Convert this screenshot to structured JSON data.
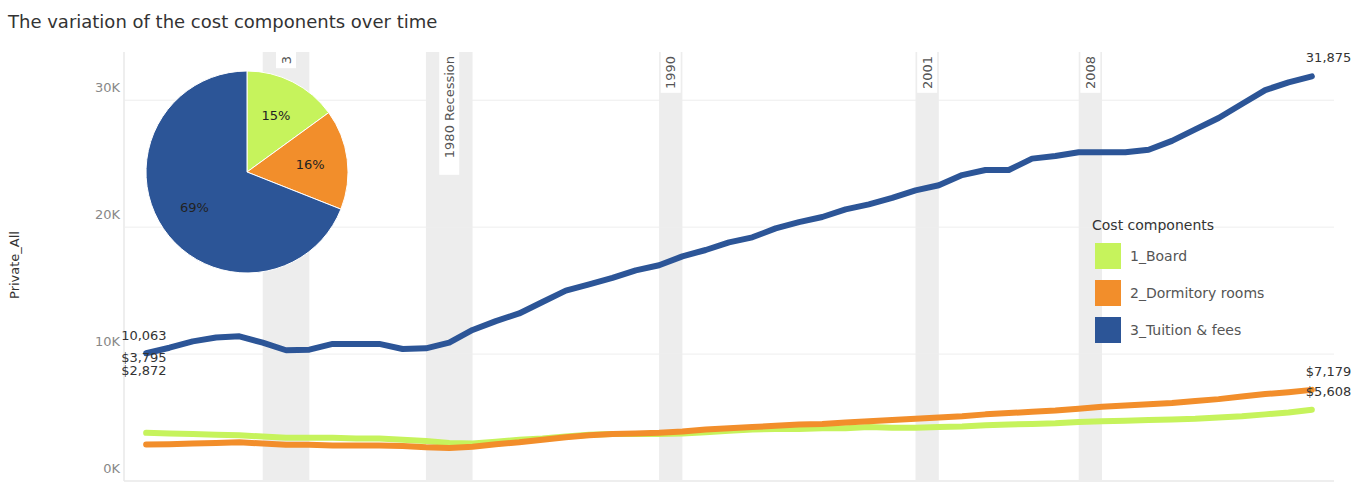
{
  "chart_data": [
    {
      "type": "line",
      "title": "The variation of the cost components over time",
      "y_label": "Private_All",
      "categories": [
        null,
        null,
        null,
        null,
        null,
        null,
        null,
        null,
        null,
        null,
        null,
        null,
        null,
        null,
        null,
        null,
        null,
        null,
        null,
        null,
        null,
        null,
        null,
        null,
        null,
        null,
        null,
        null,
        null,
        null,
        null,
        null,
        null,
        null,
        null,
        null,
        null,
        null,
        null,
        null,
        null,
        null,
        null,
        null,
        null,
        null,
        null,
        null,
        null,
        null,
        null
      ],
      "ylim": [
        0,
        33800
      ],
      "yticks": [
        {
          "value": 0,
          "label": "0K"
        },
        {
          "value": 10000,
          "label": "10K"
        },
        {
          "value": 20000,
          "label": "20K"
        },
        {
          "value": 30000,
          "label": "30K"
        }
      ],
      "grid": true,
      "tick_labels": "y",
      "legend": "right",
      "legend_title": "Cost components",
      "data_labels": true,
      "annotations": [
        {
          "label": "3",
          "start": 5,
          "end": 7
        },
        {
          "label": "1980 Recession",
          "start": 12,
          "end": 14
        },
        {
          "label": "1990",
          "start": 22,
          "end": 23
        },
        {
          "label": "2001",
          "start": 33,
          "end": 34
        },
        {
          "label": "2008",
          "start": 40,
          "end": 41
        }
      ],
      "series": [
        {
          "name": "1_Board",
          "color": "#c6f35c",
          "values": [
            3795,
            3750,
            3700,
            3650,
            3600,
            3500,
            3400,
            3400,
            3400,
            3350,
            3350,
            3250,
            3150,
            3000,
            2950,
            3100,
            3250,
            3350,
            3500,
            3650,
            3700,
            3700,
            3700,
            3750,
            3850,
            3950,
            4050,
            4100,
            4100,
            4150,
            4150,
            4250,
            4200,
            4200,
            4250,
            4300,
            4400,
            4450,
            4500,
            4550,
            4650,
            4700,
            4750,
            4800,
            4850,
            4900,
            5000,
            5100,
            5250,
            5400,
            5608
          ],
          "value_labels": [
            "$3,795",
            null,
            null,
            null,
            null,
            null,
            null,
            null,
            null,
            null,
            null,
            null,
            null,
            null,
            null,
            null,
            null,
            null,
            null,
            null,
            null,
            null,
            null,
            null,
            null,
            null,
            null,
            null,
            null,
            null,
            null,
            null,
            null,
            null,
            null,
            null,
            null,
            null,
            null,
            null,
            null,
            null,
            null,
            null,
            null,
            null,
            null,
            null,
            null,
            null,
            "$5,608"
          ]
        },
        {
          "name": "2_Dormitory rooms",
          "color": "#f28e2b",
          "values": [
            2872,
            2900,
            2950,
            3000,
            3050,
            2950,
            2850,
            2850,
            2800,
            2800,
            2800,
            2750,
            2650,
            2600,
            2700,
            2900,
            3050,
            3250,
            3450,
            3600,
            3700,
            3750,
            3800,
            3900,
            4050,
            4150,
            4250,
            4350,
            4450,
            4500,
            4600,
            4700,
            4800,
            4900,
            5000,
            5100,
            5250,
            5350,
            5450,
            5550,
            5700,
            5850,
            5950,
            6050,
            6150,
            6300,
            6450,
            6650,
            6850,
            7000,
            7179
          ],
          "value_labels": [
            "$2,872",
            null,
            null,
            null,
            null,
            null,
            null,
            null,
            null,
            null,
            null,
            null,
            null,
            null,
            null,
            null,
            null,
            null,
            null,
            null,
            null,
            null,
            null,
            null,
            null,
            null,
            null,
            null,
            null,
            null,
            null,
            null,
            null,
            null,
            null,
            null,
            null,
            null,
            null,
            null,
            null,
            null,
            null,
            null,
            null,
            null,
            null,
            null,
            null,
            null,
            "$7,179"
          ]
        },
        {
          "name": "3_Tuition & fees",
          "color": "#2c5597",
          "values": [
            10063,
            10500,
            11000,
            11300,
            11400,
            10900,
            10300,
            10350,
            10800,
            10800,
            10800,
            10400,
            10450,
            10900,
            11900,
            12600,
            13200,
            14100,
            15000,
            15500,
            16000,
            16600,
            17000,
            17700,
            18200,
            18800,
            19200,
            19900,
            20400,
            20800,
            21400,
            21800,
            22300,
            22900,
            23300,
            24100,
            24500,
            24500,
            25400,
            25600,
            25900,
            25900,
            25900,
            26100,
            26800,
            27700,
            28600,
            29700,
            30800,
            31400,
            31875
          ],
          "value_labels": [
            "10,063",
            null,
            null,
            null,
            null,
            null,
            null,
            null,
            null,
            null,
            null,
            null,
            null,
            null,
            null,
            null,
            null,
            null,
            null,
            null,
            null,
            null,
            null,
            null,
            null,
            null,
            null,
            null,
            null,
            null,
            null,
            null,
            null,
            null,
            null,
            null,
            null,
            null,
            null,
            null,
            null,
            null,
            null,
            null,
            null,
            null,
            null,
            null,
            null,
            null,
            "31,875"
          ]
        }
      ]
    },
    {
      "type": "pie",
      "values": [
        15,
        16,
        69
      ],
      "value_labels": [
        "15%",
        "16%",
        "69%"
      ],
      "colors": [
        "#c6f35c",
        "#f28e2b",
        "#2c5597"
      ],
      "data_labels": true
    }
  ]
}
